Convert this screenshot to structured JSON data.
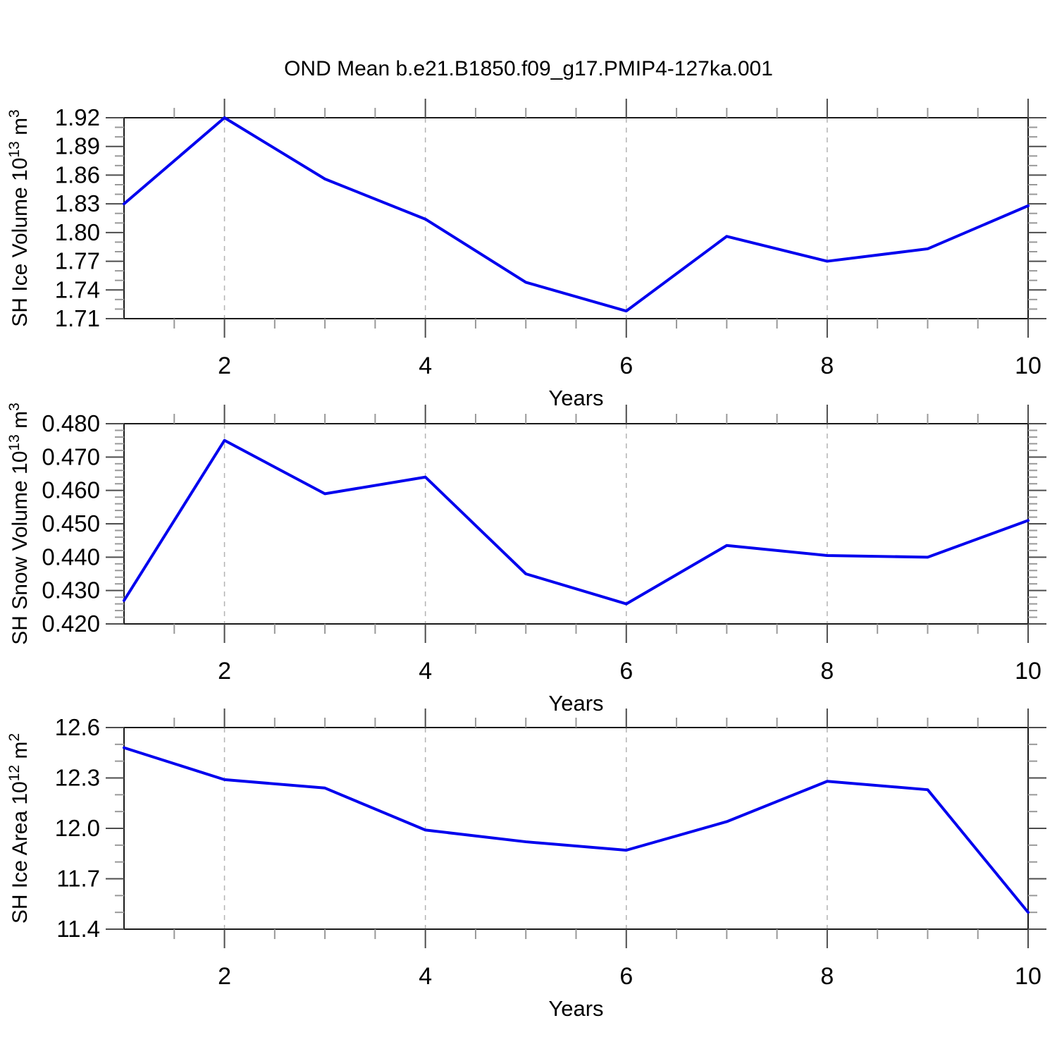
{
  "title": "OND Mean b.e21.B1850.f09_g17.PMIP4-127ka.001",
  "chart_data": [
    {
      "type": "line",
      "panel": "top",
      "ylabel_parts": [
        {
          "t": "SH Ice Volume 10",
          "sup": false
        },
        {
          "t": "13",
          "sup": true
        },
        {
          "t": " m",
          "sup": false
        },
        {
          "t": "3",
          "sup": true
        }
      ],
      "xlabel": "Years",
      "x": [
        1,
        2,
        3,
        4,
        5,
        6,
        7,
        8,
        9,
        10
      ],
      "values": [
        1.83,
        1.92,
        1.856,
        1.814,
        1.748,
        1.718,
        1.796,
        1.77,
        1.783,
        1.828
      ],
      "xlim": [
        1,
        10
      ],
      "ylim": [
        1.71,
        1.92
      ],
      "ytick_values": [
        1.71,
        1.74,
        1.77,
        1.8,
        1.83,
        1.86,
        1.89,
        1.92
      ],
      "ytick_labels": [
        "1.71",
        "1.74",
        "1.77",
        "1.80",
        "1.83",
        "1.86",
        "1.89",
        "1.92"
      ],
      "yminor_step": 0.01,
      "xtick_values": [
        2,
        4,
        6,
        8,
        10
      ],
      "xtick_labels": [
        "2",
        "4",
        "6",
        "8",
        "10"
      ],
      "xminor_step": 0.5,
      "gridlines_x": [
        2,
        4,
        6,
        8
      ],
      "grid_on": true,
      "legend": "none",
      "line_color": "#0000ee"
    },
    {
      "type": "line",
      "panel": "middle",
      "ylabel_parts": [
        {
          "t": "SH Snow Volume 10",
          "sup": false
        },
        {
          "t": "13",
          "sup": true
        },
        {
          "t": " m",
          "sup": false
        },
        {
          "t": "3",
          "sup": true
        }
      ],
      "xlabel": "Years",
      "x": [
        1,
        2,
        3,
        4,
        5,
        6,
        7,
        8,
        9,
        10
      ],
      "values": [
        0.427,
        0.475,
        0.459,
        0.464,
        0.435,
        0.426,
        0.4435,
        0.4405,
        0.44,
        0.451
      ],
      "xlim": [
        1,
        10
      ],
      "ylim": [
        0.42,
        0.48
      ],
      "ytick_values": [
        0.42,
        0.43,
        0.44,
        0.45,
        0.46,
        0.47,
        0.48
      ],
      "ytick_labels": [
        "0.420",
        "0.430",
        "0.440",
        "0.450",
        "0.460",
        "0.470",
        "0.480"
      ],
      "yminor_step": 0.002,
      "xtick_values": [
        2,
        4,
        6,
        8,
        10
      ],
      "xtick_labels": [
        "2",
        "4",
        "6",
        "8",
        "10"
      ],
      "xminor_step": 0.5,
      "gridlines_x": [
        2,
        4,
        6,
        8
      ],
      "grid_on": true,
      "legend": "none",
      "line_color": "#0000ee"
    },
    {
      "type": "line",
      "panel": "bottom",
      "ylabel_parts": [
        {
          "t": "SH Ice Area 10",
          "sup": false
        },
        {
          "t": "12",
          "sup": true
        },
        {
          "t": " m",
          "sup": false
        },
        {
          "t": "2",
          "sup": true
        }
      ],
      "xlabel": "Years",
      "x": [
        1,
        2,
        3,
        4,
        5,
        6,
        7,
        8,
        9,
        10
      ],
      "values": [
        12.48,
        12.29,
        12.24,
        11.99,
        11.92,
        11.87,
        12.04,
        12.28,
        12.23,
        11.5
      ],
      "xlim": [
        1,
        10
      ],
      "ylim": [
        11.4,
        12.6
      ],
      "ytick_values": [
        11.4,
        11.7,
        12.0,
        12.3,
        12.6
      ],
      "ytick_labels": [
        "11.4",
        "11.7",
        "12.0",
        "12.3",
        "12.6"
      ],
      "yminor_step": 0.1,
      "xtick_values": [
        2,
        4,
        6,
        8,
        10
      ],
      "xtick_labels": [
        "2",
        "4",
        "6",
        "8",
        "10"
      ],
      "xminor_step": 0.5,
      "gridlines_x": [
        2,
        4,
        6,
        8
      ],
      "grid_on": true,
      "legend": "none",
      "line_color": "#0000ee"
    }
  ],
  "colors": {
    "line": "#0000ee",
    "frame": "#1a1a1a",
    "major_tick": "#4d4d4d",
    "minor_tick": "#999999",
    "gridline": "#b3b3b3",
    "background": "#ffffff"
  }
}
